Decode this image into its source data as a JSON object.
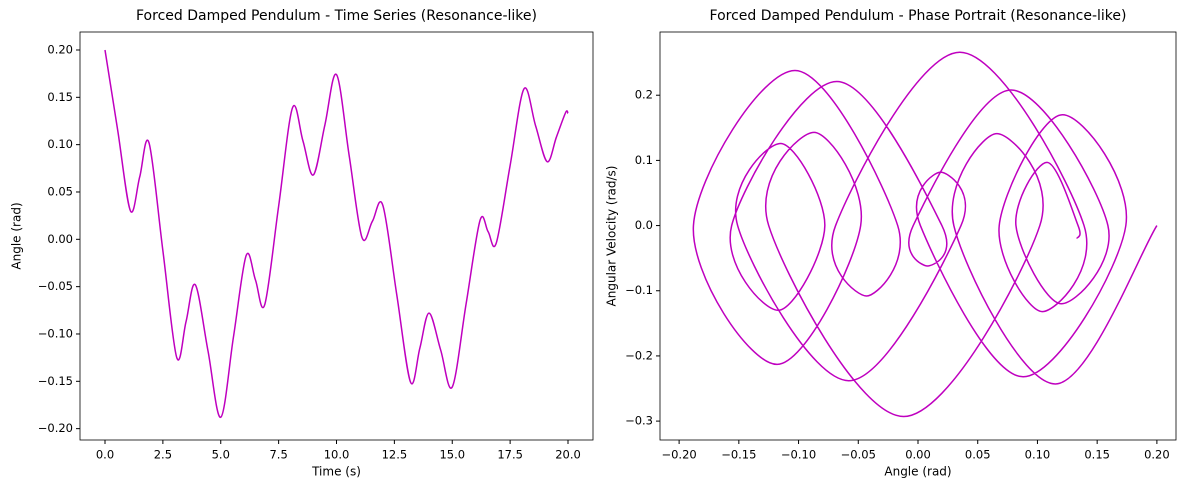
{
  "chart_data": [
    {
      "type": "line",
      "title": "Forced Damped Pendulum - Time Series (Resonance-like)",
      "x_label": "Time (s)",
      "y_label": "Angle (rad)",
      "x": [
        0,
        0.55,
        1.1,
        1.5,
        1.9,
        2.5,
        3.1,
        3.5,
        3.9,
        4.45,
        5.0,
        5.55,
        6.1,
        6.5,
        6.9,
        7.5,
        8.1,
        8.55,
        9.0,
        9.5,
        10.0,
        10.55,
        11.1,
        11.55,
        12.0,
        12.6,
        13.2,
        13.6,
        14.0,
        14.5,
        15.0,
        15.6,
        16.2,
        16.55,
        16.9,
        17.5,
        18.1,
        18.6,
        19.1,
        19.5,
        19.9,
        20.0
      ],
      "values": [
        0.2,
        0.115,
        0.03,
        0.066,
        0.102,
        -0.012,
        -0.125,
        -0.087,
        -0.048,
        -0.118,
        -0.188,
        -0.103,
        -0.017,
        -0.043,
        -0.069,
        0.035,
        0.139,
        0.104,
        0.068,
        0.121,
        0.174,
        0.088,
        0.002,
        0.019,
        0.036,
        -0.058,
        -0.151,
        -0.115,
        -0.078,
        -0.117,
        -0.156,
        -0.068,
        0.02,
        0.008,
        -0.004,
        0.078,
        0.159,
        0.12,
        0.082,
        0.108,
        0.134,
        0.133
      ],
      "color": "#bf00bf",
      "xlim": [
        -1.08,
        21.08
      ],
      "ylim": [
        -0.212,
        0.219
      ],
      "xticks": [
        {
          "value": 0,
          "label": "0.0"
        },
        {
          "value": 2.5,
          "label": "2.5"
        },
        {
          "value": 5,
          "label": "5.0"
        },
        {
          "value": 7.5,
          "label": "7.5"
        },
        {
          "value": 10,
          "label": "10.0"
        },
        {
          "value": 12.5,
          "label": "12.5"
        },
        {
          "value": 15,
          "label": "15.0"
        },
        {
          "value": 17.5,
          "label": "17.5"
        },
        {
          "value": 20,
          "label": "20.0"
        }
      ],
      "yticks": [
        {
          "value": -0.2,
          "label": "−0.20"
        },
        {
          "value": -0.15,
          "label": "−0.15"
        },
        {
          "value": -0.1,
          "label": "−0.10"
        },
        {
          "value": -0.05,
          "label": "−0.05"
        },
        {
          "value": 0,
          "label": "0.00"
        },
        {
          "value": 0.05,
          "label": "0.05"
        },
        {
          "value": 0.1,
          "label": "0.10"
        },
        {
          "value": 0.15,
          "label": "0.15"
        },
        {
          "value": 0.2,
          "label": "0.20"
        }
      ],
      "grid": false
    },
    {
      "type": "line",
      "title": "Forced Damped Pendulum - Phase Portrait (Resonance-like)",
      "x_label": "Angle (rad)",
      "y_label": "Angular Velocity (rad/s)",
      "x": [
        0.2,
        0.115,
        0.03,
        0.066,
        0.102,
        -0.012,
        -0.125,
        -0.087,
        -0.048,
        -0.118,
        -0.188,
        -0.103,
        -0.017,
        -0.043,
        -0.069,
        0.035,
        0.139,
        0.104,
        0.068,
        0.121,
        0.174,
        0.088,
        0.002,
        0.019,
        0.036,
        -0.058,
        -0.151,
        -0.115,
        -0.078,
        -0.117,
        -0.156,
        -0.068,
        0.02,
        0.008,
        -0.004,
        0.078,
        0.159,
        0.12,
        0.082,
        0.108,
        0.134,
        0.133
      ],
      "values": [
        0,
        -0.243,
        0,
        0.141,
        0,
        -0.293,
        0,
        0.143,
        0,
        -0.213,
        0,
        0.238,
        0,
        -0.108,
        0,
        0.266,
        0,
        -0.132,
        0,
        0.17,
        0,
        -0.232,
        0,
        0.082,
        0,
        -0.238,
        0,
        0.126,
        0,
        -0.13,
        0,
        0.221,
        0,
        -0.062,
        0,
        0.208,
        0,
        -0.12,
        0,
        0.097,
        0,
        -0.02
      ],
      "color": "#bf00bf",
      "xlim": [
        -0.216,
        0.216
      ],
      "ylim": [
        -0.329,
        0.297
      ],
      "xticks": [
        {
          "value": -0.2,
          "label": "−0.20"
        },
        {
          "value": -0.15,
          "label": "−0.15"
        },
        {
          "value": -0.1,
          "label": "−0.10"
        },
        {
          "value": -0.05,
          "label": "−0.05"
        },
        {
          "value": 0,
          "label": "0.00"
        },
        {
          "value": 0.05,
          "label": "0.05"
        },
        {
          "value": 0.1,
          "label": "0.10"
        },
        {
          "value": 0.15,
          "label": "0.15"
        },
        {
          "value": 0.2,
          "label": "0.20"
        }
      ],
      "yticks": [
        {
          "value": -0.3,
          "label": "−0.3"
        },
        {
          "value": -0.2,
          "label": "−0.2"
        },
        {
          "value": -0.1,
          "label": "−0.1"
        },
        {
          "value": 0,
          "label": "0.0"
        },
        {
          "value": 0.1,
          "label": "0.1"
        },
        {
          "value": 0.2,
          "label": "0.2"
        }
      ],
      "grid": false
    }
  ]
}
